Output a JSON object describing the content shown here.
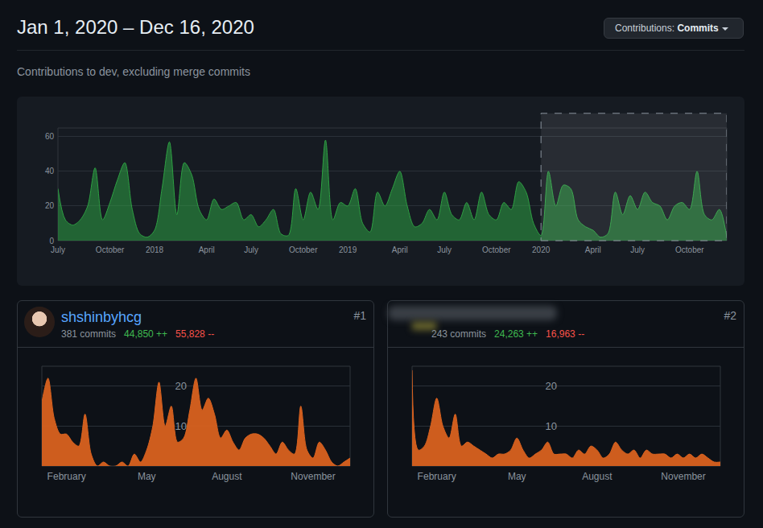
{
  "header": {
    "title": "Jan 1, 2020 – Dec 16, 2020",
    "button": {
      "label": "Contributions:",
      "value": "Commits"
    },
    "subtitle": "Contributions to dev, excluding merge commits"
  },
  "contributors": [
    {
      "rank": "#1",
      "name": "shshinbyhcg",
      "commits": "381 commits",
      "additions": "44,850 ++",
      "deletions": "55,828 --"
    },
    {
      "rank": "#2",
      "commits": "243 commits",
      "additions": "24,263 ++",
      "deletions": "16,963 --"
    }
  ],
  "chart_data": [
    {
      "type": "area",
      "color": "#2ea043",
      "grid": true,
      "ylim": [
        0,
        65
      ],
      "yticks": [
        0,
        20,
        40,
        60
      ],
      "selection": {
        "from": "2020"
      },
      "categories": [
        "July",
        null,
        null,
        null,
        null,
        null,
        null,
        "October",
        null,
        null,
        null,
        null,
        null,
        "2018",
        null,
        null,
        null,
        null,
        null,
        null,
        "April",
        null,
        null,
        null,
        null,
        null,
        "July",
        null,
        null,
        null,
        null,
        null,
        null,
        "October",
        null,
        null,
        null,
        null,
        null,
        "2019",
        null,
        null,
        null,
        null,
        null,
        null,
        "April",
        null,
        null,
        null,
        null,
        null,
        "July",
        null,
        null,
        null,
        null,
        null,
        null,
        "October",
        null,
        null,
        null,
        null,
        null,
        "2020",
        null,
        null,
        null,
        null,
        null,
        null,
        "April",
        null,
        null,
        null,
        null,
        null,
        "July",
        null,
        null,
        null,
        null,
        null,
        null,
        "October",
        null,
        null,
        null,
        null,
        null
      ],
      "values": [
        30,
        12,
        9,
        12,
        20,
        42,
        12,
        22,
        35,
        45,
        18,
        4,
        2,
        6,
        30,
        57,
        15,
        45,
        38,
        18,
        12,
        24,
        18,
        20,
        22,
        12,
        15,
        8,
        12,
        18,
        4,
        3,
        30,
        12,
        28,
        18,
        58,
        12,
        22,
        20,
        30,
        10,
        5,
        28,
        20,
        30,
        40,
        20,
        8,
        10,
        18,
        12,
        28,
        15,
        12,
        22,
        12,
        28,
        15,
        12,
        22,
        18,
        34,
        28,
        10,
        3,
        40,
        20,
        32,
        30,
        12,
        8,
        6,
        2,
        4,
        28,
        15,
        26,
        18,
        28,
        22,
        20,
        12,
        20,
        22,
        18,
        40,
        15,
        12,
        18,
        2
      ]
    },
    {
      "type": "area",
      "color": "#d9621f",
      "grid": true,
      "ylim": [
        0,
        25
      ],
      "yticks": [
        10,
        20
      ],
      "categories": [
        null,
        null,
        null,
        null,
        "February",
        null,
        null,
        null,
        null,
        null,
        null,
        null,
        null,
        null,
        null,
        null,
        null,
        "May",
        null,
        null,
        null,
        null,
        null,
        null,
        null,
        null,
        null,
        null,
        null,
        null,
        "August",
        null,
        null,
        null,
        null,
        null,
        null,
        null,
        null,
        null,
        null,
        null,
        null,
        null,
        "November",
        null,
        null,
        null,
        null,
        null,
        null
      ],
      "values": [
        16,
        22,
        12,
        8,
        8,
        6,
        5,
        13,
        3,
        0,
        1,
        0,
        0,
        1,
        0,
        3,
        1,
        4,
        10,
        21,
        10,
        15,
        6,
        7,
        14,
        22,
        14,
        17,
        13,
        7,
        9,
        6,
        4,
        7,
        8,
        8,
        7,
        5,
        3,
        6,
        4,
        3,
        15,
        4,
        2,
        6,
        4,
        1,
        0,
        1,
        2
      ]
    },
    {
      "type": "area",
      "color": "#d9621f",
      "grid": true,
      "ylim": [
        0,
        25
      ],
      "yticks": [
        10,
        20
      ],
      "categories": [
        null,
        null,
        null,
        null,
        "February",
        null,
        null,
        null,
        null,
        null,
        null,
        null,
        null,
        null,
        null,
        null,
        null,
        "May",
        null,
        null,
        null,
        null,
        null,
        null,
        null,
        null,
        null,
        null,
        null,
        null,
        "August",
        null,
        null,
        null,
        null,
        null,
        null,
        null,
        null,
        null,
        null,
        null,
        null,
        null,
        "November",
        null,
        null,
        null,
        null,
        null,
        null
      ],
      "values": [
        24,
        4,
        5,
        10,
        17,
        10,
        7,
        13,
        5,
        6,
        5,
        4,
        3,
        2,
        3,
        3,
        4,
        7,
        4,
        2,
        3,
        4,
        6,
        3,
        3,
        3,
        2,
        4,
        3,
        5,
        4,
        2,
        3,
        6,
        4,
        3,
        4,
        2,
        4,
        3,
        3,
        3,
        2,
        3,
        2,
        3,
        2,
        3,
        2,
        1,
        1
      ]
    }
  ]
}
